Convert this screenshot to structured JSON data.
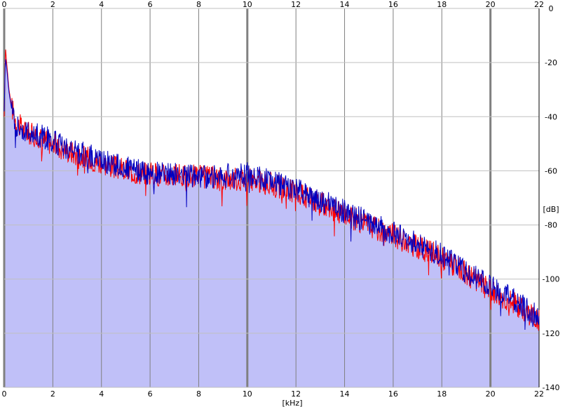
{
  "chart_data": {
    "type": "area",
    "title": "",
    "xlabel": "[kHz]",
    "ylabel": "[dB]",
    "xlim": [
      0,
      22
    ],
    "ylim": [
      -140,
      0
    ],
    "x_ticks": [
      "0",
      "2",
      "4",
      "6",
      "8",
      "10",
      "12",
      "14",
      "16",
      "18",
      "20",
      "22"
    ],
    "y_ticks": [
      "0",
      "-20",
      "-40",
      "-60",
      "-80",
      "-100",
      "-120",
      "-140"
    ],
    "grid": true,
    "legend": "none",
    "colors": {
      "fill": "#c0c0f8",
      "series_red": "#ff0000",
      "series_blue": "#0000c0",
      "grid": "#c0c0c0",
      "axis": "#808080"
    },
    "series": [
      {
        "color": "#ff0000",
        "x": [
          0,
          0.05,
          0.1,
          0.2,
          0.3,
          0.5,
          0.8,
          1,
          1.5,
          2,
          2.5,
          3,
          4,
          5,
          6,
          7,
          8,
          9,
          10,
          11,
          12,
          13,
          14,
          15,
          16,
          17,
          18,
          19,
          20,
          21,
          21.5,
          22
        ],
        "values": [
          -40,
          -14,
          -20,
          -30,
          -36,
          -42,
          -45,
          -46,
          -48,
          -50,
          -52,
          -54,
          -57,
          -60,
          -61,
          -62,
          -62,
          -63,
          -63,
          -65,
          -68,
          -72,
          -76,
          -80,
          -84,
          -88,
          -92,
          -98,
          -104,
          -109,
          -112,
          -115
        ]
      },
      {
        "color": "#0000c0",
        "x": [
          0,
          0.05,
          0.1,
          0.2,
          0.3,
          0.5,
          0.8,
          1,
          1.5,
          2,
          2.5,
          3,
          4,
          5,
          6,
          7,
          8,
          9,
          10,
          11,
          12,
          13,
          14,
          15,
          16,
          17,
          18,
          19,
          20,
          21,
          21.5,
          22
        ],
        "values": [
          -38,
          -18,
          -22,
          -31,
          -37,
          -43,
          -45,
          -46,
          -47,
          -49,
          -51,
          -53,
          -56,
          -59,
          -61,
          -61,
          -62,
          -62,
          -61,
          -64,
          -67,
          -71,
          -75,
          -79,
          -83,
          -87,
          -91,
          -97,
          -103,
          -108,
          -111,
          -114
        ]
      }
    ]
  }
}
